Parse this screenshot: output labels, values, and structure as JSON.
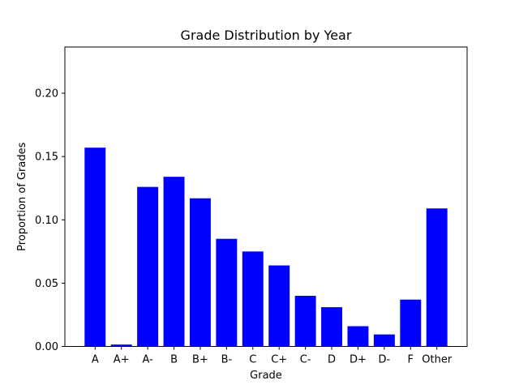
{
  "chart_data": {
    "type": "bar",
    "title": "Grade Distribution by Year",
    "xlabel": "Grade",
    "ylabel": "Proportion of Grades",
    "categories": [
      "A",
      "A+",
      "A-",
      "B",
      "B+",
      "B-",
      "C",
      "C+",
      "C-",
      "D",
      "D+",
      "D-",
      "F",
      "Other"
    ],
    "values": [
      0.157,
      0.0015,
      0.126,
      0.134,
      0.117,
      0.085,
      0.075,
      0.064,
      0.04,
      0.031,
      0.016,
      0.0095,
      0.037,
      0.109
    ],
    "ylim": [
      0,
      0.2365
    ],
    "yticks": [
      0.0,
      0.05,
      0.1,
      0.15,
      0.2
    ],
    "ytick_labels": [
      "0.00",
      "0.05",
      "0.10",
      "0.15",
      "0.20"
    ],
    "bar_color": "#0000ff",
    "grid": false,
    "legend": "none"
  }
}
